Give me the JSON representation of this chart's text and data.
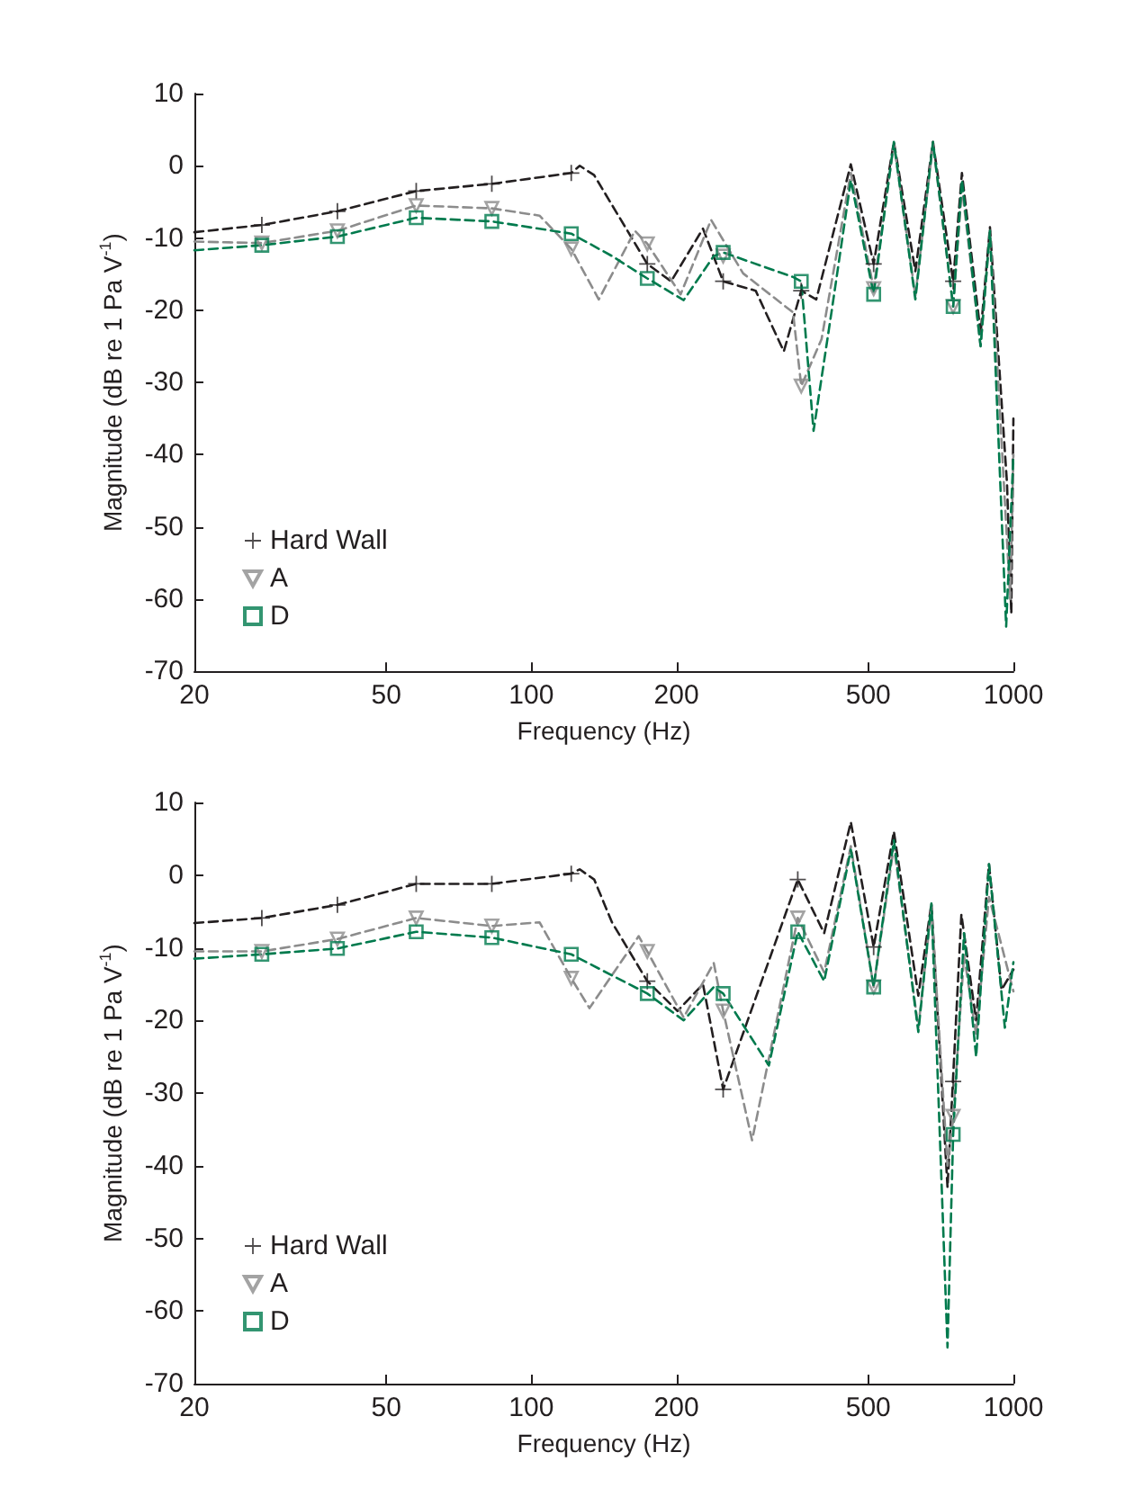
{
  "chart_data": [
    {
      "type": "line",
      "xlabel": "Frequency (Hz)",
      "ylabel": "Magnitude (dB re 1 Pa V$^{-1}$)",
      "log": "x",
      "xlim": [
        20,
        1000
      ],
      "xticks": [
        20,
        50,
        100,
        200,
        500,
        1000
      ],
      "ylim": [
        -70,
        10
      ],
      "yticks": [
        -70,
        -60,
        -50,
        -40,
        -30,
        -20,
        -10,
        0,
        10
      ],
      "grid": false,
      "legend": "bottom left",
      "line_style": "dashed",
      "series": [
        {
          "color": "#231f20",
          "marker": "none",
          "x": [
            20,
            27.6,
            39.6,
            57.7,
            82.8,
            121,
            126,
            135,
            174,
            195,
            227,
            250,
            292,
            334,
            363,
            390,
            460,
            513,
            565,
            626,
            681,
            750,
            782,
            855,
            894,
            970,
            990,
            1000
          ],
          "values": [
            -9.2,
            -8.2,
            -6.3,
            -3.5,
            -2.5,
            -1,
            0,
            -1.3,
            -13.6,
            -16,
            -8.7,
            -16,
            -17.3,
            -25.7,
            -17.3,
            -18.5,
            0.2,
            -13.6,
            3.3,
            -14.6,
            3.3,
            -16,
            -1,
            -23.2,
            -8.5,
            -44,
            -62,
            -35
          ]
        },
        {
          "color": "#8c8c8c",
          "marker": "none",
          "x": [
            20,
            27.6,
            39.6,
            57.7,
            82.8,
            104,
            121,
            138,
            164,
            174,
            204,
            236,
            275,
            349,
            363,
            400,
            460,
            513,
            565,
            626,
            681,
            750,
            782,
            855,
            894,
            985,
            1000
          ],
          "values": [
            -10.5,
            -10.7,
            -9,
            -5.5,
            -5.9,
            -6.9,
            -11.5,
            -18.5,
            -9,
            -10.8,
            -17.8,
            -7.5,
            -14.9,
            -20.3,
            -30.5,
            -24,
            -1,
            -17,
            3,
            -18,
            3,
            -19.5,
            -3,
            -25,
            -9,
            -60,
            -40
          ]
        },
        {
          "color": "#007a4d",
          "marker": "none",
          "x": [
            20,
            27.6,
            39.6,
            57.7,
            82.8,
            121,
            147,
            174,
            207,
            239,
            250,
            349,
            363,
            385,
            420,
            460,
            513,
            565,
            626,
            681,
            750,
            782,
            855,
            894,
            966,
            1000
          ],
          "values": [
            -11.7,
            -11,
            -9.8,
            -7.2,
            -7.7,
            -9.4,
            -12.5,
            -15.6,
            -18.6,
            -12.5,
            -12,
            -15.4,
            -16,
            -36.7,
            -20,
            -2,
            -17.8,
            3.3,
            -18.5,
            3.3,
            -19.5,
            -2,
            -25,
            -9,
            -63.8,
            -40
          ]
        },
        {
          "type": "scatter",
          "name": "Hard Wall",
          "color": "#231f20",
          "marker": "cross",
          "x": [
            27.6,
            39.6,
            57.7,
            82.8,
            121,
            174,
            250,
            363,
            513,
            750
          ],
          "values": [
            -8.2,
            -6.3,
            -3.5,
            -2.5,
            -1,
            -13.6,
            -16,
            -17.3,
            -13.6,
            -16
          ]
        },
        {
          "type": "scatter",
          "name": "A",
          "color": "#8c8c8c",
          "marker": "triangle",
          "x": [
            27.6,
            39.6,
            57.7,
            82.8,
            121,
            174,
            250,
            363,
            513,
            750
          ],
          "values": [
            -10.7,
            -9,
            -5.5,
            -5.9,
            -11.5,
            -10.8,
            -12.5,
            -30.5,
            -17,
            -19.5
          ]
        },
        {
          "type": "scatter",
          "name": "D",
          "color": "#007a4d",
          "marker": "square",
          "x": [
            27.6,
            39.6,
            57.7,
            82.8,
            121,
            174,
            250,
            363,
            513,
            750
          ],
          "values": [
            -11,
            -9.8,
            -7.2,
            -7.7,
            -9.4,
            -15.6,
            -12,
            -16,
            -17.8,
            -19.5
          ]
        }
      ]
    },
    {
      "type": "line",
      "xlabel": "Frequency (Hz)",
      "ylabel": "Magnitude (dB re 1 Pa V$^{-1}$)",
      "log": "x",
      "xlim": [
        20,
        1000
      ],
      "xticks": [
        20,
        50,
        100,
        200,
        500,
        1000
      ],
      "ylim": [
        -70,
        10
      ],
      "yticks": [
        -70,
        -60,
        -50,
        -40,
        -30,
        -20,
        -10,
        0,
        10
      ],
      "grid": false,
      "legend": "bottom left",
      "line_style": "dashed",
      "series": [
        {
          "color": "#231f20",
          "marker": "none",
          "x": [
            20,
            27.6,
            39.6,
            57.7,
            82.8,
            121,
            126,
            135,
            147,
            174,
            201,
            227,
            250,
            357,
            405,
            460,
            513,
            565,
            635,
            676,
            730,
            780,
            837,
            890,
            945,
            1000
          ],
          "values": [
            -6.6,
            -5.9,
            -4.1,
            -1.2,
            -1.2,
            0.2,
            0.8,
            -0.6,
            -6.5,
            -14.6,
            -18.7,
            -15,
            -29.5,
            -0.6,
            -8,
            7.3,
            -9.9,
            6,
            -16.6,
            -3.9,
            -43,
            -5.4,
            -20,
            1.5,
            -15.8,
            -13
          ]
        },
        {
          "color": "#8c8c8c",
          "marker": "none",
          "x": [
            20,
            27.6,
            39.6,
            57.7,
            82.8,
            104,
            121,
            132,
            167,
            174,
            207,
            239,
            250,
            287,
            357,
            405,
            460,
            513,
            565,
            635,
            676,
            730,
            750,
            790,
            837,
            890,
            1000
          ],
          "values": [
            -10.5,
            -10.5,
            -8.8,
            -5.9,
            -7,
            -6.5,
            -14.2,
            -18.3,
            -8.4,
            -10.5,
            -19.6,
            -12.1,
            -18.7,
            -36.5,
            -5.9,
            -13.4,
            4,
            -15.4,
            4,
            -21,
            -4.5,
            -40,
            -33.2,
            -11,
            -22,
            -3,
            -16
          ]
        },
        {
          "color": "#007a4d",
          "marker": "none",
          "x": [
            20,
            27.6,
            39.6,
            57.7,
            82.8,
            121,
            147,
            174,
            207,
            239,
            250,
            311,
            357,
            405,
            460,
            513,
            565,
            635,
            676,
            730,
            750,
            790,
            837,
            890,
            960,
            1000
          ],
          "values": [
            -11.5,
            -10.9,
            -10.1,
            -7.8,
            -8.6,
            -10.9,
            -13.8,
            -16.3,
            -20,
            -15.4,
            -16.3,
            -26.2,
            -7.8,
            -14.6,
            3.5,
            -15.4,
            4.8,
            -21.6,
            -3.9,
            -65,
            -35.7,
            -8,
            -25,
            1.5,
            -21,
            -12
          ]
        },
        {
          "type": "scatter",
          "name": "Hard Wall",
          "color": "#231f20",
          "marker": "cross",
          "x": [
            27.6,
            39.6,
            57.7,
            82.8,
            121,
            174,
            250,
            357,
            513,
            750
          ],
          "values": [
            -5.9,
            -4.1,
            -1.2,
            -1.2,
            0.2,
            -14.6,
            -29.5,
            -0.6,
            -9.9,
            -28.4
          ]
        },
        {
          "type": "scatter",
          "name": "A",
          "color": "#8c8c8c",
          "marker": "triangle",
          "x": [
            27.6,
            39.6,
            57.7,
            82.8,
            121,
            174,
            250,
            357,
            513,
            750
          ],
          "values": [
            -10.5,
            -8.8,
            -5.9,
            -7,
            -14.2,
            -10.5,
            -18.7,
            -5.9,
            -15.4,
            -33.2
          ]
        },
        {
          "type": "scatter",
          "name": "D",
          "color": "#007a4d",
          "marker": "square",
          "x": [
            27.6,
            39.6,
            57.7,
            82.8,
            121,
            174,
            250,
            357,
            513,
            750
          ],
          "values": [
            -10.9,
            -10.1,
            -7.8,
            -8.6,
            -10.9,
            -16.3,
            -16.3,
            -7.8,
            -15.4,
            -35.7
          ]
        }
      ]
    }
  ]
}
